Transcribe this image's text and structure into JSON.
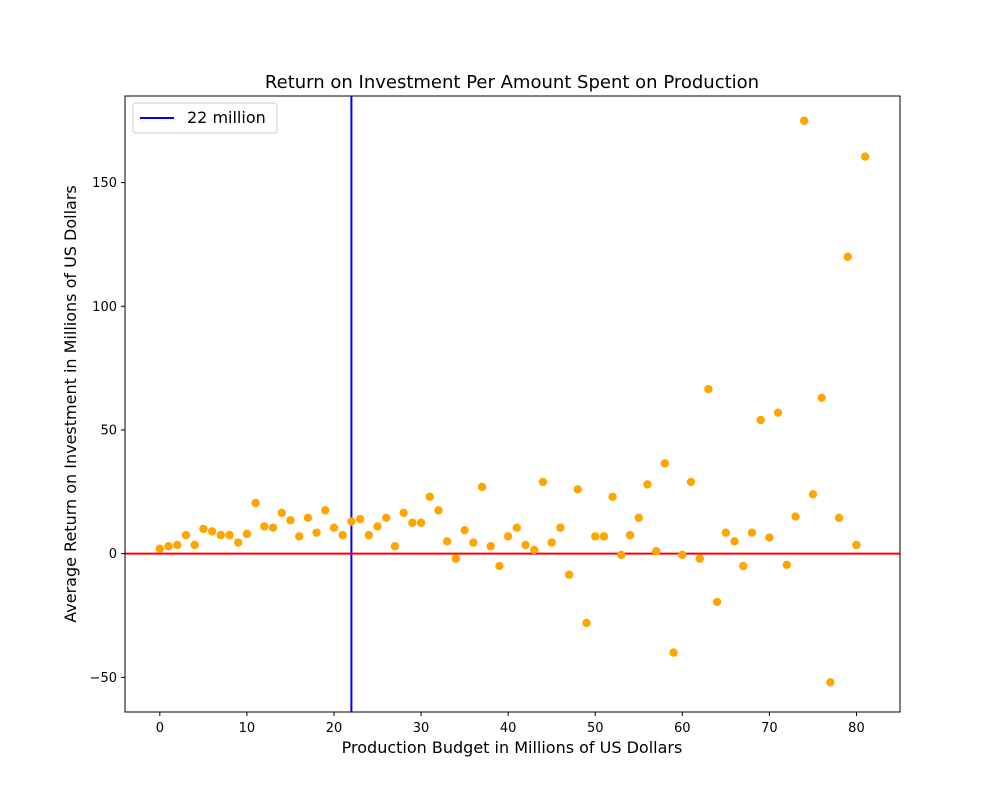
{
  "chart_data": {
    "type": "scatter",
    "title": "Return on Investment Per Amount Spent on Production",
    "xlabel": "Production Budget in Millions of US Dollars",
    "ylabel": "Average Return on Investment in Millions of US Dollars",
    "xlim": [
      -4,
      85
    ],
    "ylim": [
      -64,
      185
    ],
    "xticks": [
      0,
      10,
      20,
      30,
      40,
      50,
      60,
      70,
      80
    ],
    "yticks": [
      -50,
      0,
      50,
      100,
      150
    ],
    "ytick_labels": [
      "−50",
      "0",
      "50",
      "100",
      "150"
    ],
    "grid": false,
    "legend": {
      "placement": "top-left",
      "entries": [
        "22 million"
      ]
    },
    "colors": {
      "points": "#ffa500",
      "vline": "#0000ff",
      "hline": "#ff0000"
    },
    "reference_lines": [
      {
        "orientation": "vertical",
        "x": 22,
        "label": "22 million",
        "color": "#0000ff"
      },
      {
        "orientation": "horizontal",
        "y": 0,
        "color": "#ff0000"
      }
    ],
    "series": [
      {
        "x": [
          0,
          1,
          2,
          3,
          4,
          5,
          6,
          7,
          8,
          9,
          10,
          11,
          12,
          13,
          14,
          15,
          16,
          17,
          18,
          19,
          20,
          21,
          22,
          23,
          24,
          25,
          26,
          27,
          28,
          29,
          30,
          31,
          32,
          33,
          34,
          35,
          36,
          37,
          38,
          39,
          40,
          41,
          42,
          43,
          44,
          45,
          46,
          47,
          48,
          49,
          50,
          51,
          52,
          53,
          54,
          55,
          56,
          57,
          58,
          59,
          60,
          61,
          62,
          63,
          64,
          65,
          66,
          67,
          68,
          69,
          70,
          71,
          72,
          73,
          74,
          75,
          76,
          77,
          78,
          79,
          80,
          81
        ],
        "y": [
          2,
          3,
          3.5,
          7.5,
          3.5,
          10,
          9,
          7.5,
          7.5,
          4.5,
          8,
          20.5,
          11,
          10.5,
          16.5,
          13.5,
          7,
          14.5,
          8.5,
          17.5,
          10.5,
          7.5,
          13,
          14,
          7.5,
          11,
          14.5,
          3,
          16.5,
          12.5,
          12.5,
          23,
          17.5,
          5,
          -2,
          9.5,
          4.5,
          27,
          3,
          -5,
          7,
          10.5,
          3.5,
          1.5,
          29,
          4.5,
          10.5,
          -8.5,
          26,
          -28,
          7,
          7,
          23,
          -0.5,
          7.5,
          14.5,
          28,
          1,
          36.5,
          -40,
          -0.5,
          29,
          -2,
          66.5,
          -19.5,
          8.5,
          5,
          -5,
          8.5,
          54,
          6.5,
          57,
          -4.5,
          15,
          175,
          24,
          63,
          -52,
          14.5,
          120,
          3.5,
          160.5
        ]
      }
    ]
  }
}
